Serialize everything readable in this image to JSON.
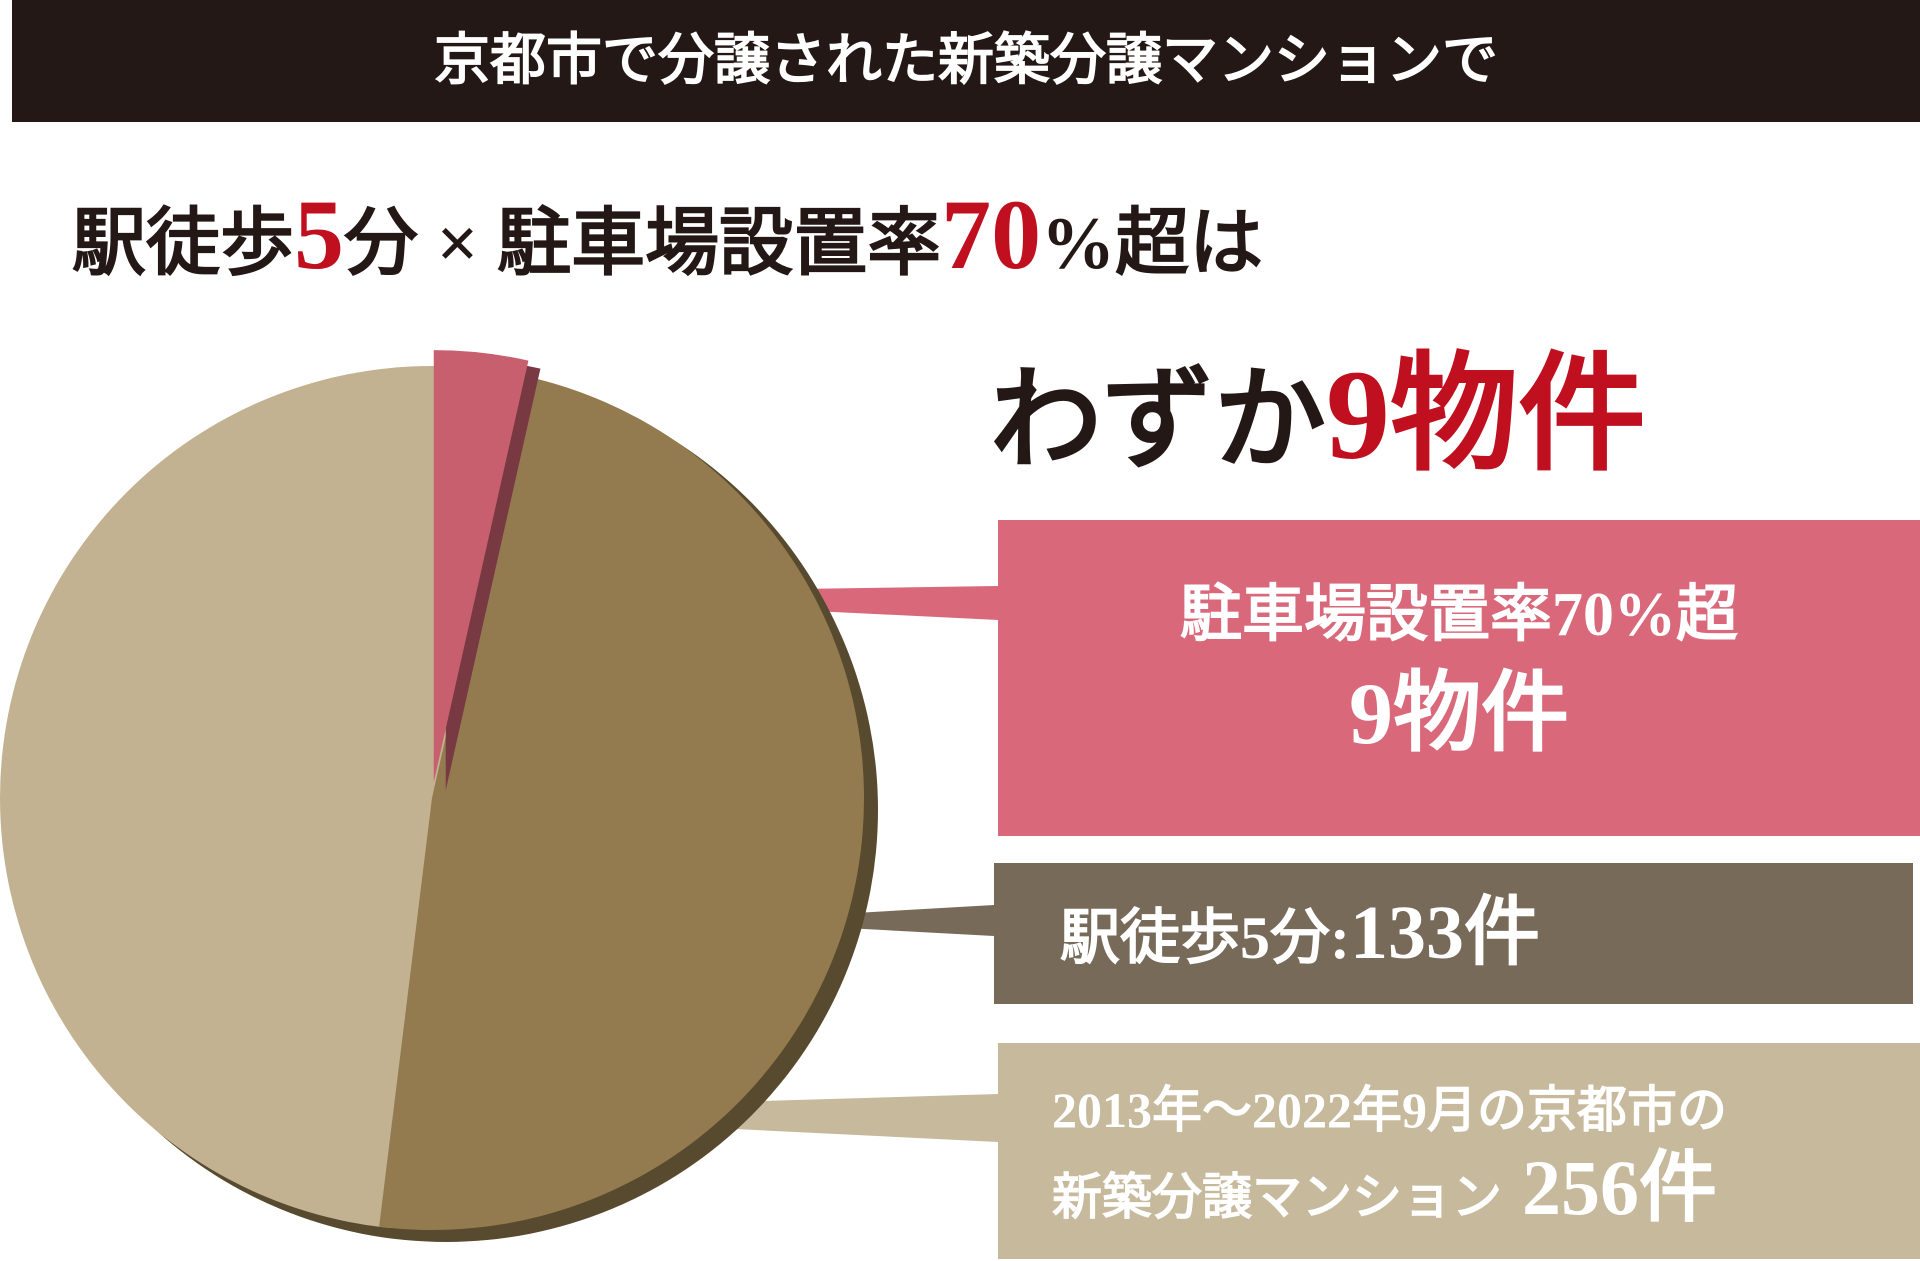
{
  "banner": "京都市で分譲された新築分譲マンションで",
  "headline": [
    "駅徒歩",
    "5",
    "分 × 駐車場設置率",
    "70",
    "%超は"
  ],
  "subheadline": [
    "わずか",
    "9物件"
  ],
  "chart_data": {
    "type": "pie",
    "categories": [
      "駐車場設置率70%超",
      "駅徒歩5分:",
      "2013年〜2022年9月の京都市の\n新築分譲マンション"
    ],
    "values": [
      9,
      133,
      256
    ],
    "value_labels": [
      "9物件",
      "133件",
      "256件"
    ],
    "colors": [
      "#c85f6e",
      "#937b4f",
      "#c2b291"
    ]
  }
}
